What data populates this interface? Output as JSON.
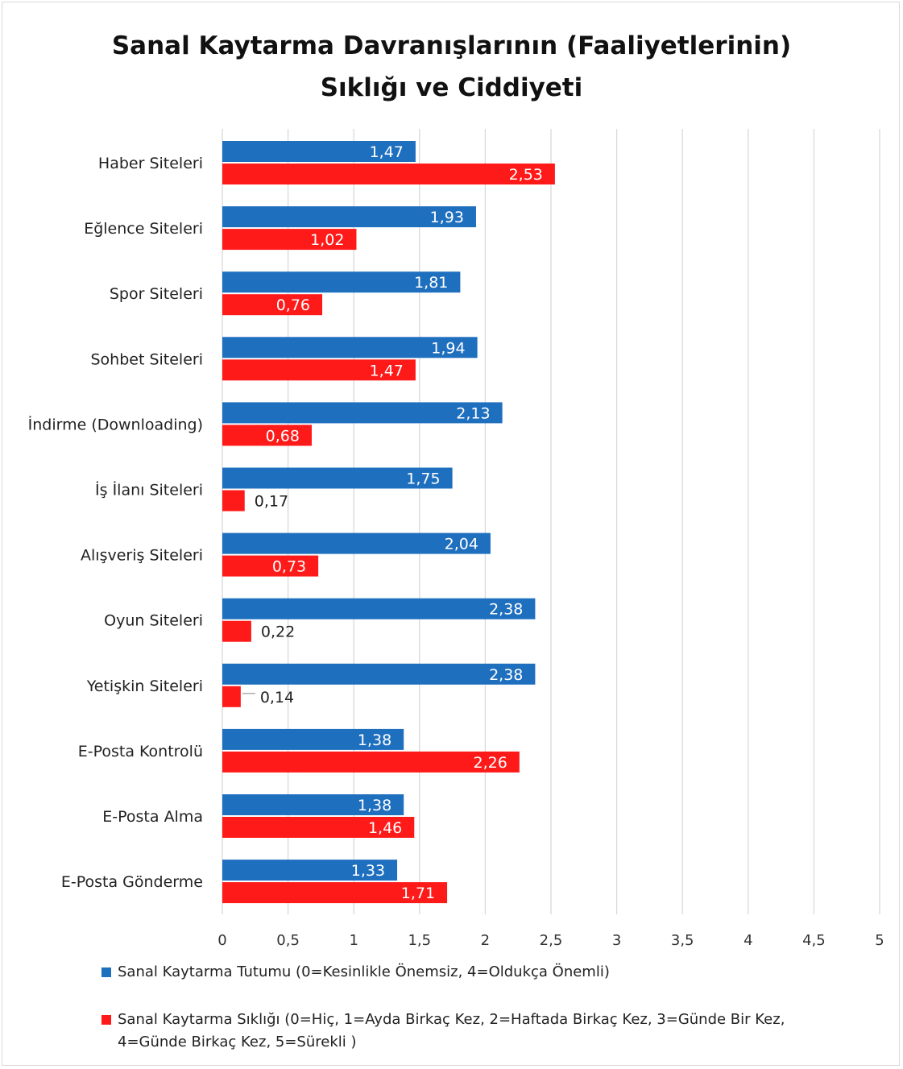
{
  "chart_data": {
    "type": "bar",
    "orientation": "horizontal",
    "title_lines": [
      "Sanal Kaytarma Davranışlarının (Faaliyetlerinin)",
      "Sıklığı ve Ciddiyeti"
    ],
    "categories": [
      "Haber Siteleri",
      "Eğlence Siteleri",
      "Spor Siteleri",
      "Sohbet Siteleri",
      "İndirme (Downloading)",
      "İş İlanı Siteleri",
      "Alışveriş Siteleri",
      "Oyun Siteleri",
      "Yetişkin Siteleri",
      "E-Posta Kontrolü",
      "E-Posta Alma",
      "E-Posta Gönderme"
    ],
    "series": [
      {
        "name": "Sanal Kaytarma Tutumu (0=Kesinlikle Önemsiz, 4=Oldukça Önemli)",
        "color": "#1f6fbf",
        "values": [
          1.47,
          1.93,
          1.81,
          1.94,
          2.13,
          1.75,
          2.04,
          2.38,
          2.38,
          1.38,
          1.38,
          1.33
        ],
        "labels": [
          "1,47",
          "1,93",
          "1,81",
          "1,94",
          "2,13",
          "1,75",
          "2,04",
          "2,38",
          "2,38",
          "1,38",
          "1,38",
          "1,33"
        ]
      },
      {
        "name": "Sanal Kaytarma Sıklığı (0=Hiç, 1=Ayda Birkaç Kez, 2=Haftada Birkaç Kez, 3=Günde Bir Kez, 4=Günde Birkaç Kez, 5=Sürekli )",
        "color": "#ff1a1a",
        "values": [
          2.53,
          1.02,
          0.76,
          1.47,
          0.68,
          0.17,
          0.73,
          0.22,
          0.14,
          2.26,
          1.46,
          1.71
        ],
        "labels": [
          "2,53",
          "1,02",
          "0,76",
          "1,47",
          "0,68",
          "0,17",
          "0,73",
          "0,22",
          "0,14",
          "2,26",
          "1,46",
          "1,71"
        ]
      }
    ],
    "x_ticks": [
      0,
      0.5,
      1,
      1.5,
      2,
      2.5,
      3,
      3.5,
      4,
      4.5,
      5
    ],
    "x_tick_labels": [
      "0",
      "0,5",
      "1",
      "1,5",
      "2",
      "2,5",
      "3",
      "3,5",
      "4",
      "4,5",
      "5"
    ],
    "xlim": [
      0,
      5
    ],
    "grid": "vertical",
    "legend_position": "bottom",
    "legend_lines": [
      [
        "Sanal Kaytarma Tutumu (0=Kesinlikle Önemsiz, 4=Oldukça Önemli)"
      ],
      [
        "Sanal Kaytarma Sıklığı (0=Hiç, 1=Ayda Birkaç Kez, 2=Haftada Birkaç Kez, 3=Günde Bir Kez,",
        "4=Günde Birkaç Kez, 5=Sürekli )"
      ]
    ]
  }
}
